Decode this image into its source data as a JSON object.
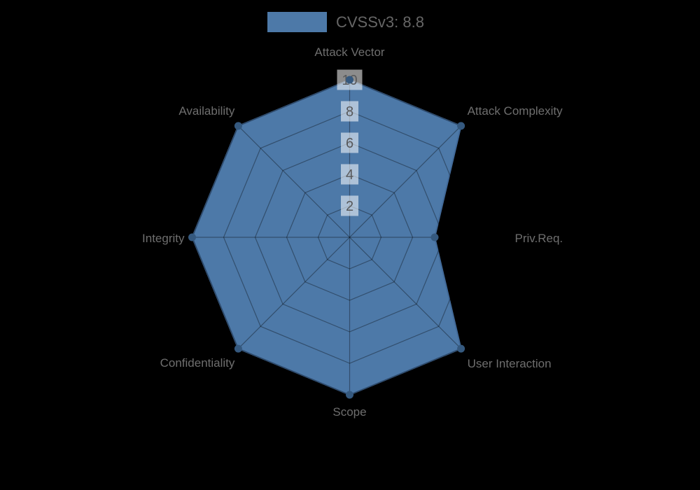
{
  "background_color": "#000000",
  "legend": {
    "label": "CVSSv3: 8.8",
    "swatch_color": "#4d79a8"
  },
  "chart_data": {
    "type": "radar",
    "title": "CVSSv3: 8.8",
    "categories": [
      "Attack Vector",
      "Attack Complexity",
      "Priv.Req.",
      "User Interaction",
      "Scope",
      "Confidentiality",
      "Integrity",
      "Availability"
    ],
    "series": [
      {
        "name": "CVSSv3: 8.8",
        "values": [
          10,
          10,
          5.4,
          10,
          10,
          10,
          10,
          10
        ]
      }
    ],
    "radial_ticks": [
      2,
      4,
      6,
      8,
      10
    ],
    "rlim": [
      0,
      10
    ],
    "grid": true,
    "legend_position": "top-center",
    "fill_color": "#4d79a8",
    "stroke_color": "#426a99",
    "dot_color": "#35597f",
    "grid_color": "rgba(0,0,0,0.35)",
    "axis_label_color": "#6e6e6e",
    "tick_label_color": "#58595b",
    "tick_box_color": "rgba(255,255,255,0.55)"
  }
}
